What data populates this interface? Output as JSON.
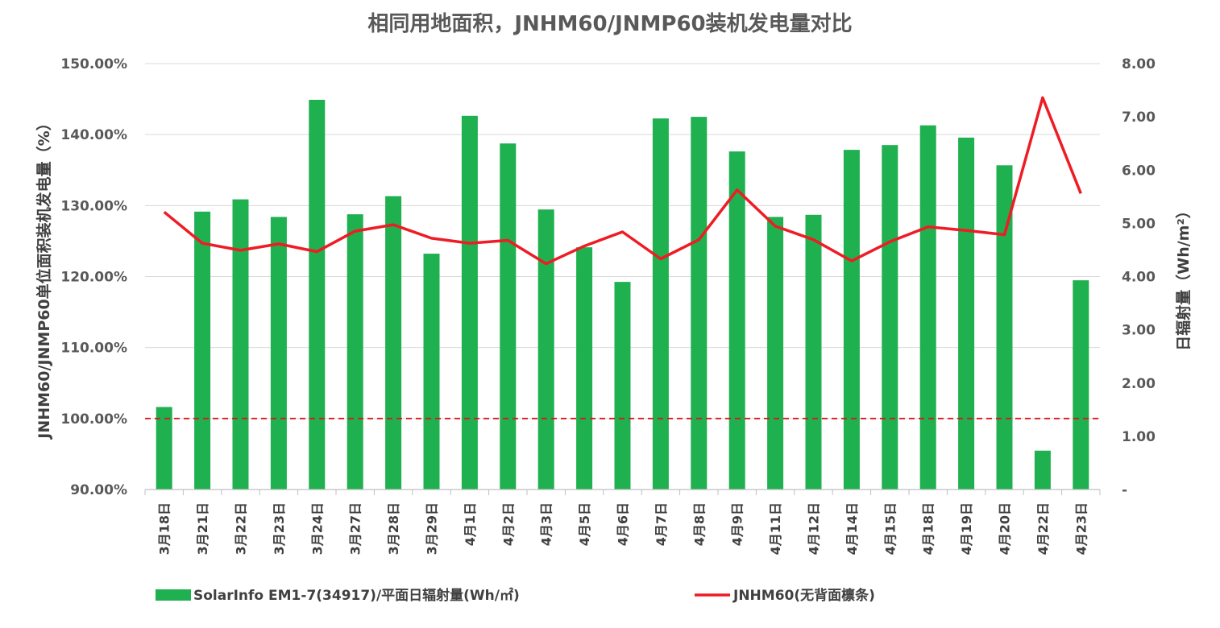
{
  "chart_data": {
    "type": "bar",
    "title": "相同用地面积，JNHM60/JNMP60装机发电量对比",
    "categories": [
      "3月18日",
      "3月21日",
      "3月22日",
      "3月23日",
      "3月24日",
      "3月27日",
      "3月28日",
      "3月29日",
      "4月1日",
      "4月2日",
      "4月3日",
      "4月5日",
      "4月6日",
      "4月7日",
      "4月8日",
      "4月9日",
      "4月11日",
      "4月12日",
      "4月14日",
      "4月15日",
      "4月18日",
      "4月19日",
      "4月20日",
      "4月22日",
      "4月23日"
    ],
    "series": [
      {
        "name": "SolarInfo EM1-7(34917)/平面日辐射量(Wh/㎡)",
        "type": "bar",
        "axis": "right",
        "color": "#1fb050",
        "values": [
          1.55,
          5.22,
          5.45,
          5.12,
          7.32,
          5.17,
          5.51,
          4.43,
          7.02,
          6.5,
          5.26,
          4.55,
          3.9,
          6.97,
          7.0,
          6.35,
          5.12,
          5.16,
          6.38,
          6.47,
          6.84,
          6.61,
          6.09,
          0.73,
          3.93
        ]
      },
      {
        "name": "JNHM60(无背面檩条)",
        "type": "line",
        "axis": "left",
        "color": "#ee1c24",
        "values": [
          1.291,
          1.247,
          1.237,
          1.246,
          1.235,
          1.264,
          1.273,
          1.254,
          1.247,
          1.251,
          1.218,
          1.243,
          1.263,
          1.225,
          1.252,
          1.322,
          1.271,
          1.252,
          1.222,
          1.249,
          1.27,
          1.265,
          1.259,
          1.452,
          1.317
        ]
      }
    ],
    "reference_line": {
      "value": 1.0,
      "axis": "left",
      "style": "dashed",
      "color": "#d7191c"
    },
    "y_left": {
      "label": "JNHM60/JNMP60单位面积装机发电量（%）",
      "ylim": [
        0.9,
        1.5
      ],
      "ticks": [
        0.9,
        1.0,
        1.1,
        1.2,
        1.3,
        1.4,
        1.5
      ],
      "tick_labels": [
        "90.00%",
        "100.00%",
        "110.00%",
        "120.00%",
        "130.00%",
        "140.00%",
        "150.00%"
      ]
    },
    "y_right": {
      "label": "日辐射量（Wh/m²）",
      "ylim": [
        0,
        8
      ],
      "ticks": [
        0,
        1,
        2,
        3,
        4,
        5,
        6,
        7,
        8
      ],
      "tick_labels": [
        "-",
        "1.00",
        "2.00",
        "3.00",
        "4.00",
        "5.00",
        "6.00",
        "7.00",
        "8.00"
      ]
    },
    "grid": true,
    "legend_position": "bottom"
  }
}
